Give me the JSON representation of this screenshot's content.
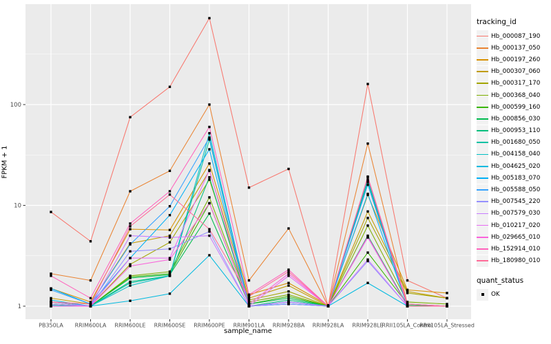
{
  "chart_data": {
    "type": "line",
    "title": "",
    "xlabel": "sample_name",
    "ylabel": "FPKM + 1",
    "legend_title": "tracking_id",
    "legend_position": "right",
    "y_scale": "log10",
    "y_ticks": [
      1,
      10,
      100
    ],
    "y_tick_labels": [
      "1",
      "10",
      "100"
    ],
    "y_minor_ticks": [
      3.162,
      31.62,
      316.2
    ],
    "ylim_approx": [
      0.77,
      955
    ],
    "grid": "white major and minor gridlines on grey panel",
    "point_marker": "black-square",
    "categories": [
      "PB350LA",
      "RRIM600LA",
      "RRIM600LE",
      "RRIM600SE",
      "RRIM600PE",
      "RRIM901LA",
      "RRIM928BA",
      "RRIM928LA",
      "RRIM928LE",
      "RRII105LA_Control",
      "RRII105LA_Stressed"
    ],
    "series": [
      {
        "name": "Hb_000087_190",
        "color": "#F8766D",
        "values": [
          8.6,
          4.4,
          75,
          150,
          720,
          15,
          23,
          1.0,
          160,
          1.8,
          1.2
        ]
      },
      {
        "name": "Hb_000137_050",
        "color": "#EA8331",
        "values": [
          2.1,
          1.8,
          13.8,
          22,
          100,
          1.8,
          5.9,
          1.0,
          41,
          1.05,
          1.0
        ]
      },
      {
        "name": "Hb_000197_260",
        "color": "#D89000",
        "values": [
          1.5,
          1.1,
          5.8,
          5.7,
          26,
          1.3,
          1.7,
          1.02,
          12.7,
          1.45,
          1.35
        ]
      },
      {
        "name": "Hb_000307_060",
        "color": "#C09B00",
        "values": [
          1.2,
          1.05,
          4.2,
          5.0,
          22,
          1.2,
          1.6,
          1.0,
          8.7,
          1.4,
          1.2
        ]
      },
      {
        "name": "Hb_000317_170",
        "color": "#A3A500",
        "values": [
          1.1,
          1.0,
          2.6,
          4.3,
          18,
          1.15,
          1.4,
          1.0,
          7.5,
          1.35,
          1.2
        ]
      },
      {
        "name": "Hb_000368_040",
        "color": "#7CAE00",
        "values": [
          1.05,
          1.0,
          2.0,
          2.2,
          12,
          1.1,
          1.3,
          1.0,
          6.3,
          1.1,
          1.05
        ]
      },
      {
        "name": "Hb_000599_160",
        "color": "#39B600",
        "values": [
          1.1,
          1.0,
          1.95,
          2.1,
          10.5,
          1.05,
          1.25,
          1.0,
          3.4,
          1.05,
          1.0
        ]
      },
      {
        "name": "Hb_000856_030",
        "color": "#00BB4E",
        "values": [
          1.05,
          1.0,
          1.9,
          2.05,
          8.3,
          1.05,
          1.2,
          1.0,
          5.0,
          1.02,
          1.0
        ]
      },
      {
        "name": "Hb_000953_110",
        "color": "#00BF7D",
        "values": [
          1.0,
          1.0,
          1.75,
          2.0,
          19,
          1.0,
          1.15,
          1.0,
          17,
          1.0,
          1.0
        ]
      },
      {
        "name": "Hb_001680_050",
        "color": "#00C1A3",
        "values": [
          1.0,
          1.0,
          1.7,
          2.0,
          45,
          1.0,
          1.1,
          1.0,
          17.5,
          1.0,
          1.0
        ]
      },
      {
        "name": "Hb_004158_040",
        "color": "#00BFC4",
        "values": [
          1.02,
          1.0,
          1.6,
          2.0,
          52,
          1.0,
          1.1,
          1.0,
          18,
          1.0,
          1.0
        ]
      },
      {
        "name": "Hb_004625_020",
        "color": "#00BAE0",
        "values": [
          1.15,
          1.0,
          1.13,
          1.33,
          3.2,
          1.0,
          1.05,
          1.0,
          1.7,
          1.0,
          1.0
        ]
      },
      {
        "name": "Hb_005183_070",
        "color": "#00B0F6",
        "values": [
          1.5,
          1.05,
          3.0,
          8.0,
          36,
          1.0,
          1.05,
          1.0,
          13,
          1.0,
          1.0
        ]
      },
      {
        "name": "Hb_005588_050",
        "color": "#35A2FF",
        "values": [
          1.45,
          1.05,
          4.1,
          9.8,
          47,
          1.0,
          1.1,
          1.0,
          16,
          1.0,
          1.0
        ]
      },
      {
        "name": "Hb_007545_220",
        "color": "#9590FF",
        "values": [
          1.1,
          1.0,
          3.5,
          3.7,
          5.5,
          1.0,
          1.05,
          1.0,
          2.8,
          1.0,
          1.0
        ]
      },
      {
        "name": "Hb_007579_030",
        "color": "#C77CFF",
        "values": [
          1.05,
          1.0,
          5.0,
          4.8,
          5.0,
          1.0,
          1.1,
          1.0,
          2.9,
          1.0,
          1.0
        ]
      },
      {
        "name": "Hb_010217_020",
        "color": "#E76BF3",
        "values": [
          1.0,
          1.0,
          3.0,
          3.0,
          22.4,
          1.0,
          2.0,
          1.0,
          4.8,
          1.0,
          1.0
        ]
      },
      {
        "name": "Hb_029665_010",
        "color": "#FA62DB",
        "values": [
          1.0,
          1.0,
          2.5,
          2.9,
          10.5,
          1.05,
          2.1,
          1.0,
          4.9,
          1.0,
          1.0
        ]
      },
      {
        "name": "Hb_152914_010",
        "color": "#FF62BC",
        "values": [
          2.0,
          1.2,
          6.6,
          13.8,
          60,
          1.3,
          2.3,
          1.0,
          19.3,
          1.05,
          1.0
        ]
      },
      {
        "name": "Hb_180980_010",
        "color": "#FF6A98",
        "values": [
          1.1,
          1.05,
          6.2,
          12.8,
          5.8,
          1.25,
          2.2,
          1.0,
          19,
          1.0,
          1.0
        ]
      }
    ],
    "quant_legend": {
      "title": "quant_status",
      "items": [
        {
          "label": "OK",
          "marker": "black-square"
        }
      ]
    },
    "colors": {
      "panel_background": "#EBEBEB",
      "gridline": "#FFFFFF",
      "axis_text": "#4D4D4D",
      "tick_mark": "#333333",
      "point": "#000000",
      "legend_key_background": "#F2F2F2"
    }
  }
}
